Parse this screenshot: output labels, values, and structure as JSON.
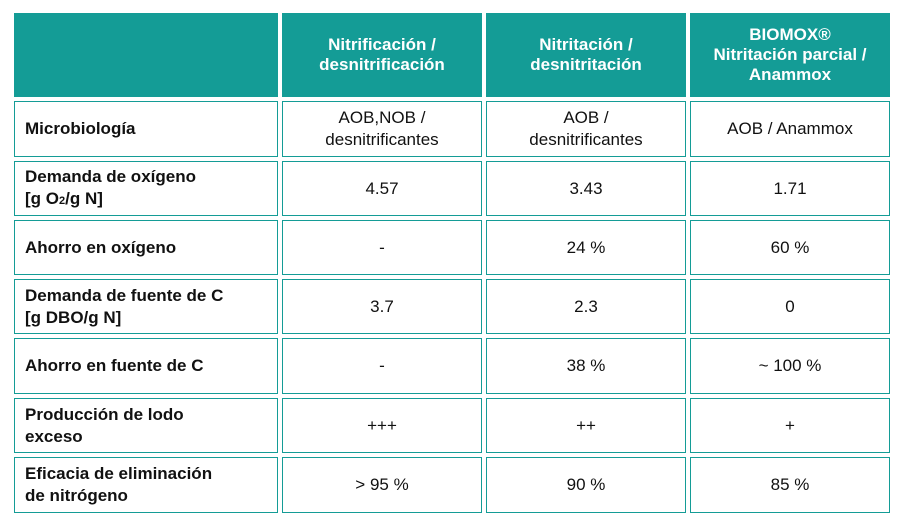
{
  "header": {
    "corner": "",
    "col1": [
      "Nitrificación /",
      "desnitrificación"
    ],
    "col2": [
      "Nitritación /",
      "desnitritación"
    ],
    "col3": [
      "BIOMOX®",
      "Nitritación parcial /",
      "Anammox"
    ]
  },
  "rows": [
    {
      "label": [
        "Microbiología"
      ],
      "values": [
        [
          "AOB,NOB /",
          "desnitrificantes"
        ],
        [
          "AOB /",
          "desnitrificantes"
        ],
        [
          "AOB / Anammox"
        ]
      ]
    },
    {
      "label_line1": "Demanda de oxígeno",
      "label_line2_pre": "[g O",
      "label_line2_sub": "2",
      "label_line2_post": "/g N]",
      "values": [
        "4.57",
        "3.43",
        "1.71"
      ]
    },
    {
      "label": [
        "Ahorro en oxígeno"
      ],
      "values": [
        "-",
        "24 %",
        "60 %"
      ]
    },
    {
      "label": [
        "Demanda de fuente de C",
        "[g DBO/g N]"
      ],
      "values": [
        "3.7",
        "2.3",
        "0"
      ]
    },
    {
      "label": [
        "Ahorro en fuente de C"
      ],
      "values": [
        "-",
        "38 %",
        "~ 100 %"
      ]
    },
    {
      "label": [
        "Producción de lodo",
        "exceso"
      ],
      "values": [
        "+++",
        "++",
        "+"
      ]
    },
    {
      "label": [
        "Eficacia de eliminación",
        "de nitrógeno"
      ],
      "values": [
        "> 95 %",
        "90 %",
        "85 %"
      ]
    }
  ],
  "colors": {
    "header_bg": "#149c96",
    "border": "#149c96",
    "header_text": "#ffffff"
  }
}
